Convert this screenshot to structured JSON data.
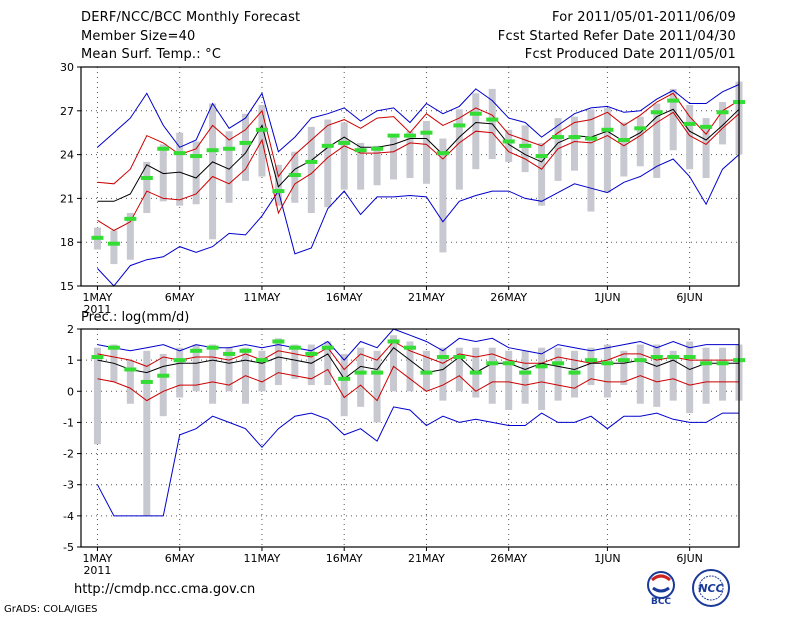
{
  "header": {
    "title": "DERF/NCC/BCC Monthly Forecast",
    "member_size": "Member Size=40",
    "variable": "Mean Surf. Temp.: °C",
    "period": "For 2011/05/01-2011/06/09",
    "refer_date": "Fcst Started Refer Date 2011/04/30",
    "produced_date": "Fcst Produced Date 2011/05/01"
  },
  "footer": {
    "url": "http://cmdp.ncc.cma.gov.cn",
    "grads": "GrADS: COLA/IGES",
    "logo_bcc": "BCC",
    "logo_ncc": "NCC"
  },
  "colors": {
    "max_min": "#0000cc",
    "spread": "#cc0000",
    "mean": "#000000",
    "bar": "#c8c8d0",
    "marker": "#33dd33"
  },
  "chart_data": [
    {
      "id": "temp",
      "type": "line",
      "title": "Mean Surf. Temp.: °C",
      "ylim": [
        15,
        30
      ],
      "yticks": [
        15,
        18,
        21,
        24,
        27,
        30
      ],
      "x_ticks": [
        {
          "day": 1,
          "label": "1MAY",
          "sub": "2011"
        },
        {
          "day": 6,
          "label": "6MAY"
        },
        {
          "day": 11,
          "label": "11MAY"
        },
        {
          "day": 16,
          "label": "16MAY"
        },
        {
          "day": 21,
          "label": "21MAY"
        },
        {
          "day": 26,
          "label": "26MAY"
        },
        {
          "day": 32,
          "label": "1JUN"
        },
        {
          "day": 37,
          "label": "6JUN"
        }
      ],
      "x_range": [
        0,
        40
      ],
      "days": [
        1,
        2,
        3,
        4,
        5,
        6,
        7,
        8,
        9,
        10,
        11,
        12,
        13,
        14,
        15,
        16,
        17,
        18,
        19,
        20,
        21,
        22,
        23,
        24,
        25,
        26,
        27,
        28,
        29,
        30,
        31,
        32,
        33,
        34,
        35,
        36,
        37,
        38,
        39,
        40
      ],
      "max": [
        24.5,
        25.5,
        26.5,
        28.2,
        26.0,
        24.5,
        25.0,
        27.5,
        25.8,
        26.5,
        28.2,
        24.2,
        25.2,
        26.5,
        26.8,
        27.2,
        26.3,
        27.0,
        27.2,
        26.2,
        27.5,
        26.8,
        27.3,
        28.5,
        27.7,
        26.5,
        26.2,
        25.2,
        26.0,
        26.8,
        27.2,
        27.3,
        26.9,
        27.0,
        27.8,
        28.4,
        27.5,
        27.5,
        28.3,
        28.8
      ],
      "upper": [
        22.1,
        22.0,
        23.0,
        25.3,
        24.8,
        24.0,
        24.4,
        26.0,
        25.0,
        25.7,
        27.0,
        22.5,
        24.0,
        25.0,
        26.0,
        26.4,
        25.8,
        26.5,
        26.6,
        25.5,
        26.8,
        26.0,
        26.5,
        27.2,
        26.7,
        25.4,
        25.0,
        24.6,
        25.5,
        26.2,
        26.4,
        26.9,
        26.0,
        26.7,
        27.6,
        28.2,
        26.6,
        25.4,
        27.0,
        27.7
      ],
      "mean": [
        20.8,
        20.8,
        21.3,
        23.3,
        22.7,
        22.8,
        22.4,
        23.5,
        23.0,
        24.1,
        26.0,
        21.8,
        23.0,
        23.6,
        24.5,
        25.2,
        24.5,
        24.5,
        24.7,
        25.1,
        25.1,
        24.0,
        25.2,
        26.2,
        26.1,
        24.7,
        24.0,
        23.5,
        24.8,
        25.3,
        25.2,
        25.6,
        24.9,
        25.5,
        26.6,
        27.1,
        25.6,
        25.0,
        26.0,
        27.1
      ],
      "lower": [
        19.5,
        18.8,
        19.4,
        21.5,
        21.0,
        20.9,
        21.3,
        22.5,
        22.0,
        23.0,
        25.0,
        20.0,
        22.0,
        22.7,
        23.8,
        24.6,
        24.1,
        24.1,
        24.2,
        24.8,
        24.7,
        23.7,
        24.8,
        25.6,
        25.5,
        24.2,
        23.7,
        23.0,
        24.4,
        24.9,
        24.8,
        25.3,
        24.6,
        25.3,
        26.2,
        26.9,
        25.3,
        24.7,
        25.8,
        26.8
      ],
      "min": [
        16.2,
        15.0,
        16.4,
        16.8,
        17.0,
        17.7,
        17.3,
        17.7,
        18.6,
        18.5,
        19.8,
        21.5,
        17.2,
        17.6,
        20.3,
        21.5,
        19.9,
        21.1,
        21.1,
        21.2,
        21.1,
        19.4,
        20.8,
        21.2,
        21.5,
        21.5,
        21.0,
        20.8,
        21.4,
        22.0,
        21.7,
        21.4,
        22.1,
        22.5,
        23.2,
        23.7,
        22.5,
        20.6,
        23.0,
        24.0
      ],
      "bar_low": [
        17.5,
        16.5,
        16.8,
        20.0,
        20.8,
        20.5,
        20.6,
        18.2,
        20.7,
        22.2,
        22.5,
        20.5,
        20.7,
        20.0,
        20.4,
        21.6,
        21.6,
        21.9,
        22.3,
        22.4,
        22.0,
        17.3,
        21.6,
        23.0,
        23.7,
        23.5,
        22.8,
        20.5,
        22.2,
        22.9,
        20.1,
        21.4,
        22.5,
        23.2,
        22.4,
        24.3,
        23.0,
        22.4,
        24.7,
        24.0
      ],
      "bar_high": [
        19.0,
        18.8,
        20.0,
        23.5,
        24.7,
        25.5,
        24.9,
        27.5,
        25.6,
        26.8,
        27.4,
        23.3,
        24.2,
        25.9,
        26.4,
        26.2,
        24.8,
        24.6,
        25.2,
        25.6,
        26.3,
        25.1,
        27.1,
        28.2,
        28.5,
        25.7,
        26.0,
        24.8,
        26.5,
        26.6,
        27.1,
        27.2,
        26.2,
        26.6,
        27.5,
        28.5,
        27.4,
        26.5,
        27.6,
        29.0
      ],
      "marker": [
        18.3,
        17.9,
        19.6,
        22.4,
        24.4,
        24.1,
        23.9,
        24.3,
        24.4,
        24.8,
        25.7,
        21.5,
        22.6,
        23.5,
        24.6,
        24.8,
        24.3,
        24.4,
        25.3,
        25.3,
        25.5,
        24.1,
        26.0,
        26.8,
        26.4,
        24.9,
        24.6,
        23.9,
        25.2,
        25.2,
        25.1,
        25.7,
        25.0,
        25.8,
        26.9,
        27.7,
        26.1,
        25.9,
        26.9,
        27.6
      ]
    },
    {
      "id": "prec",
      "type": "line",
      "title": "Prec.: log(mm/d)",
      "ylim": [
        -5,
        2
      ],
      "yticks": [
        -5,
        -4,
        -3,
        -2,
        -1,
        0,
        1,
        2
      ],
      "x_ticks": [
        {
          "day": 1,
          "label": "1MAY",
          "sub": "2011"
        },
        {
          "day": 6,
          "label": "6MAY"
        },
        {
          "day": 11,
          "label": "11MAY"
        },
        {
          "day": 16,
          "label": "16MAY"
        },
        {
          "day": 21,
          "label": "21MAY"
        },
        {
          "day": 26,
          "label": "26MAY"
        },
        {
          "day": 32,
          "label": "1JUN"
        },
        {
          "day": 37,
          "label": "6JUN"
        }
      ],
      "x_range": [
        0,
        40
      ],
      "days": [
        1,
        2,
        3,
        4,
        5,
        6,
        7,
        8,
        9,
        10,
        11,
        12,
        13,
        14,
        15,
        16,
        17,
        18,
        19,
        20,
        21,
        22,
        23,
        24,
        25,
        26,
        27,
        28,
        29,
        30,
        31,
        32,
        33,
        34,
        35,
        36,
        37,
        38,
        39,
        40
      ],
      "max": [
        1.5,
        1.4,
        1.3,
        1.4,
        1.5,
        1.3,
        1.5,
        1.4,
        1.4,
        1.5,
        1.4,
        1.5,
        1.4,
        1.3,
        1.6,
        1.0,
        1.6,
        1.4,
        2.0,
        1.8,
        1.6,
        1.3,
        1.7,
        1.6,
        1.7,
        1.4,
        1.3,
        1.2,
        1.5,
        1.4,
        1.3,
        1.4,
        1.5,
        1.6,
        1.4,
        1.6,
        1.4,
        1.5,
        1.5,
        1.5
      ],
      "upper": [
        1.2,
        1.1,
        1.0,
        0.8,
        1.1,
        1.0,
        1.1,
        1.1,
        1.0,
        1.2,
        1.0,
        1.3,
        1.2,
        1.1,
        1.4,
        0.7,
        1.2,
        1.0,
        1.6,
        1.3,
        1.1,
        0.9,
        1.2,
        1.1,
        1.2,
        1.0,
        0.9,
        0.9,
        1.1,
        1.0,
        0.9,
        1.0,
        1.2,
        1.2,
        1.0,
        1.1,
        1.0,
        1.0,
        1.0,
        1.0
      ],
      "mean": [
        1.0,
        0.9,
        0.7,
        0.6,
        0.8,
        0.9,
        0.9,
        1.0,
        0.9,
        1.0,
        0.9,
        1.1,
        1.0,
        0.9,
        1.2,
        0.4,
        0.8,
        0.7,
        1.4,
        1.0,
        0.6,
        0.7,
        1.1,
        0.6,
        0.9,
        0.9,
        0.7,
        0.9,
        0.8,
        0.7,
        0.9,
        0.9,
        0.9,
        1.0,
        0.8,
        1.0,
        0.7,
        0.9,
        0.9,
        0.9
      ],
      "lower": [
        0.4,
        0.3,
        0.1,
        -0.3,
        0.0,
        0.2,
        0.2,
        0.3,
        0.2,
        0.5,
        0.3,
        0.6,
        0.5,
        0.4,
        0.7,
        -0.2,
        0.2,
        -0.3,
        0.8,
        0.4,
        0.0,
        0.2,
        0.5,
        0.0,
        0.3,
        0.3,
        0.2,
        0.3,
        0.2,
        0.1,
        0.4,
        0.3,
        0.3,
        0.5,
        0.3,
        0.4,
        0.2,
        0.3,
        0.3,
        0.3
      ],
      "min": [
        -3.0,
        -4.0,
        -4.0,
        -4.0,
        -4.0,
        -1.4,
        -1.2,
        -0.8,
        -1.0,
        -1.2,
        -1.8,
        -1.2,
        -0.8,
        -0.7,
        -0.9,
        -1.4,
        -1.2,
        -1.6,
        -0.5,
        -0.6,
        -1.1,
        -0.8,
        -1.0,
        -0.9,
        -1.0,
        -1.1,
        -1.1,
        -0.7,
        -1.0,
        -1.0,
        -0.8,
        -1.2,
        -0.8,
        -0.8,
        -0.7,
        -0.9,
        -1.0,
        -1.0,
        -0.7,
        -0.7
      ],
      "bar_low": [
        -1.7,
        0.3,
        -0.4,
        -4.0,
        -0.8,
        -0.2,
        0.0,
        -0.4,
        0.0,
        -0.4,
        0.0,
        0.2,
        0.4,
        0.2,
        0.2,
        -0.8,
        -0.5,
        -1.0,
        0.0,
        0.0,
        0.0,
        -0.3,
        0.0,
        -0.2,
        -0.4,
        -0.6,
        -0.4,
        -0.6,
        -0.3,
        -0.2,
        0.2,
        -0.2,
        0.2,
        -0.4,
        -0.5,
        -0.3,
        -0.7,
        -0.4,
        -0.3,
        -0.3
      ],
      "bar_high": [
        1.4,
        1.5,
        1.0,
        1.3,
        1.2,
        1.4,
        1.5,
        1.5,
        1.4,
        1.4,
        1.3,
        1.7,
        1.5,
        1.5,
        1.6,
        1.2,
        1.4,
        1.3,
        1.8,
        1.6,
        1.3,
        1.4,
        1.4,
        1.4,
        1.4,
        1.3,
        1.3,
        1.4,
        1.4,
        1.3,
        1.4,
        1.5,
        1.3,
        1.5,
        1.5,
        1.3,
        1.6,
        1.4,
        1.4,
        1.5
      ],
      "marker": [
        1.1,
        1.4,
        0.7,
        0.3,
        0.5,
        1.0,
        1.3,
        1.4,
        1.2,
        1.3,
        1.0,
        1.6,
        1.4,
        1.2,
        1.4,
        0.4,
        0.6,
        0.6,
        1.6,
        1.4,
        0.6,
        1.1,
        1.1,
        0.6,
        0.9,
        0.9,
        0.6,
        0.8,
        0.9,
        0.6,
        1.0,
        0.9,
        1.0,
        1.0,
        1.1,
        1.1,
        1.1,
        0.9,
        0.9,
        1.0
      ]
    }
  ]
}
